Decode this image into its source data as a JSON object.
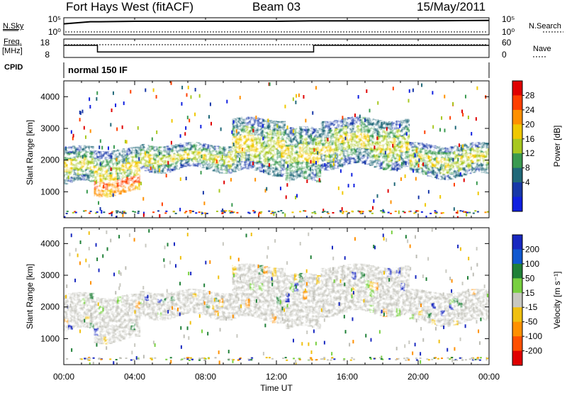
{
  "header": {
    "title": "Fort Hays West (fitACF)",
    "beam": "Beam 03",
    "date": "15/May/2011"
  },
  "labels": {
    "nsky": "N.Sky",
    "freq": "Freq.",
    "freq_unit": "[MHz]",
    "cpid": "CPID",
    "nsearch": "N.Search",
    "nave": "Nave",
    "cpid_value": "normal 150 IF"
  },
  "top_panel_ticks": {
    "noise_left": [
      "10^5",
      "10^0"
    ],
    "noise_right": [
      "10^5",
      "10^0"
    ],
    "freq_left": [
      "18",
      "8"
    ],
    "nave_right": [
      "60",
      "0"
    ]
  },
  "chart_data": [
    {
      "type": "heatmap",
      "name": "power",
      "ylabel": "Slant Range [km]",
      "xlabel": "",
      "ylim": [
        180,
        4500
      ],
      "yticks": [
        1000,
        2000,
        3000,
        4000
      ],
      "xlim": [
        0,
        24
      ],
      "x_ticks": [
        "00:00",
        "04:00",
        "08:00",
        "12:00",
        "16:00",
        "20:00",
        "00:00"
      ],
      "colorbar": {
        "label": "Power [dB]",
        "ticks": [
          "28",
          "24",
          "20",
          "16",
          "12",
          "8",
          "4"
        ],
        "colors": [
          "#e00000",
          "#ff4000",
          "#ff9000",
          "#f0c800",
          "#a8c820",
          "#3a9a50",
          "#206878",
          "#1838a8",
          "#1020e0"
        ]
      },
      "echo_bands": [
        {
          "t0": 0.0,
          "t1": 1.7,
          "r_low": 1250,
          "r_high": 2400,
          "level": "mixed"
        },
        {
          "t0": 1.7,
          "t1": 4.3,
          "r_low": 950,
          "r_high": 2350,
          "level": "high-low-range"
        },
        {
          "t0": 4.3,
          "t1": 9.5,
          "r_low": 1700,
          "r_high": 2500,
          "level": "medium"
        },
        {
          "t0": 9.5,
          "t1": 12.5,
          "r_low": 1600,
          "r_high": 3300,
          "level": "medium"
        },
        {
          "t0": 12.5,
          "t1": 14.5,
          "r_low": 1300,
          "r_high": 3000,
          "level": "medium"
        },
        {
          "t0": 14.5,
          "t1": 19.5,
          "r_low": 1800,
          "r_high": 3300,
          "level": "medium"
        },
        {
          "t0": 19.5,
          "t1": 24.0,
          "r_low": 1500,
          "r_high": 2500,
          "level": "medium"
        }
      ]
    },
    {
      "type": "heatmap",
      "name": "velocity",
      "ylabel": "Slant Range [km]",
      "xlabel": "Time UT",
      "ylim": [
        180,
        4500
      ],
      "yticks": [
        1000,
        2000,
        3000,
        4000
      ],
      "xlim": [
        0,
        24
      ],
      "x_ticks": [
        "00:00",
        "04:00",
        "08:00",
        "12:00",
        "16:00",
        "20:00",
        "00:00"
      ],
      "colorbar": {
        "label": "Velocity [m s^-1]",
        "ticks": [
          "200",
          "100",
          "50",
          "15",
          "-15",
          "-50",
          "-100",
          "-200"
        ],
        "colors": [
          "#1828c0",
          "#1058d0",
          "#208038",
          "#78d040",
          "#c8c8c0",
          "#f0c010",
          "#ff9000",
          "#ff5000",
          "#e00000"
        ]
      }
    }
  ],
  "noise_series": {
    "t": [
      0,
      1.5,
      2,
      4,
      8,
      12,
      14,
      16,
      20,
      24
    ],
    "level_frac": [
      0.55,
      0.3,
      0.3,
      0.25,
      0.25,
      0.25,
      0.2,
      0.2,
      0.2,
      0.15
    ]
  },
  "freq_series": {
    "t": [
      0,
      1.9,
      1.9,
      14.1,
      14.1,
      24
    ],
    "mhz": [
      16,
      16,
      10.5,
      10.5,
      16,
      16
    ]
  }
}
